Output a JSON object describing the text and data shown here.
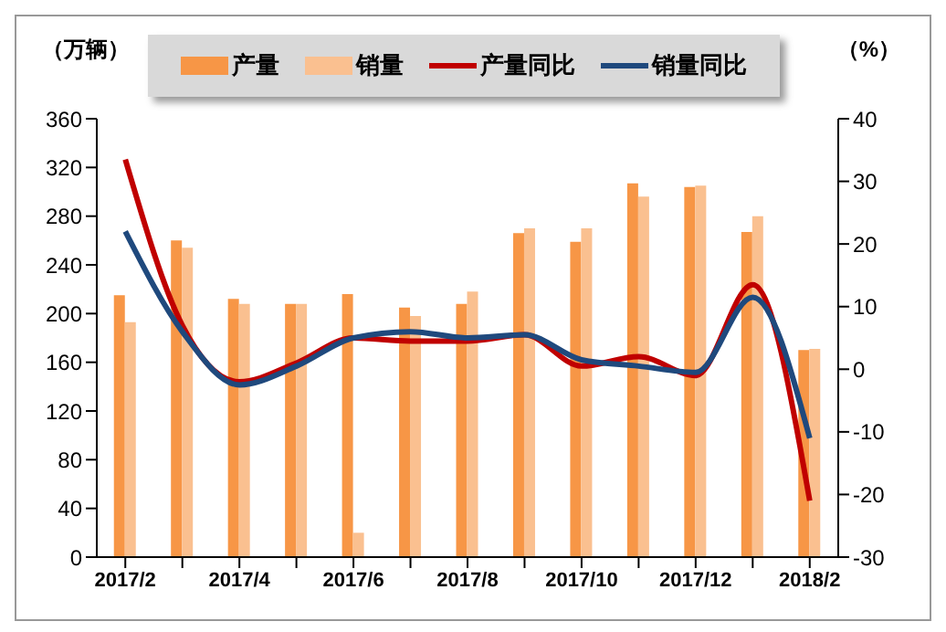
{
  "chart_data": {
    "type": "bar",
    "ylabel": "（万辆）",
    "y2label": "（%）",
    "categories": [
      "2017/2",
      null,
      "2017/4",
      null,
      "2017/6",
      null,
      "2017/8",
      null,
      "2017/10",
      null,
      "2017/12",
      null,
      "2018/2"
    ],
    "series": [
      {
        "name": "产量",
        "color": "#f79646",
        "values": [
          215,
          260,
          212,
          208,
          216,
          205,
          208,
          266,
          259,
          307,
          304,
          267,
          170
        ]
      },
      {
        "name": "销量",
        "color": "#fac090",
        "values": [
          193,
          254,
          208,
          208,
          20,
          198,
          218,
          270,
          270,
          296,
          305,
          280,
          171
        ]
      },
      {
        "name": "产量同比",
        "type": "line",
        "axis": "y2",
        "color": "#c00000",
        "values": [
          33.5,
          7,
          -2,
          1,
          5,
          4.5,
          4.5,
          5.5,
          0.5,
          2,
          -1,
          13.5,
          -21
        ]
      },
      {
        "name": "销量同比",
        "type": "line",
        "axis": "y2",
        "color": "#1f497d",
        "values": [
          22,
          6,
          -2.5,
          0.5,
          5,
          6,
          5,
          5.5,
          1.5,
          0.5,
          -0.5,
          11.5,
          -11
        ]
      }
    ],
    "ylim": [
      0,
      360
    ],
    "yticks": [
      0,
      40,
      80,
      120,
      160,
      200,
      240,
      280,
      320,
      360
    ],
    "y2lim": [
      -30,
      40
    ],
    "y2ticks": [
      -30,
      -20,
      -10,
      0,
      10,
      20,
      30,
      40
    ],
    "grid": false,
    "legend": "top",
    "marker": "none",
    "line_style": "solid"
  }
}
